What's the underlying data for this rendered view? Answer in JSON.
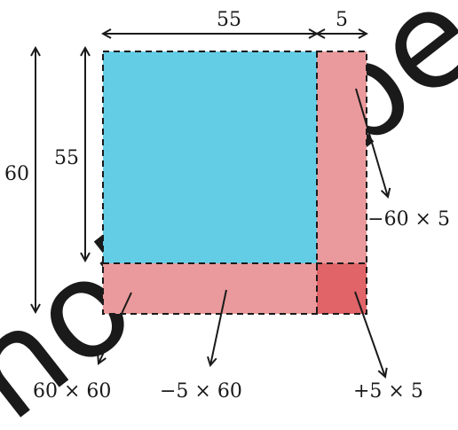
{
  "diagram": {
    "dimensions": {
      "top_outer": "55",
      "top_strip": "5",
      "left_outer": "60",
      "left_inner": "55"
    },
    "region_labels": {
      "whole_square": "60 × 60",
      "bottom_strip": "−5 × 60",
      "right_strip": "−60 × 5",
      "corner": "+5 × 5"
    },
    "watermark": "not to be"
  },
  "colors": {
    "big_square": "#64cde6",
    "strips": "#ea9a9c",
    "corner": "#e06468",
    "stroke": "#1a1a1a",
    "watermark": "#eef2f5"
  }
}
